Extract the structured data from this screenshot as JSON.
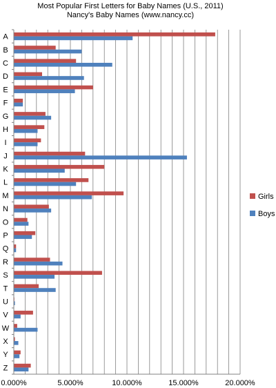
{
  "chart_data": {
    "type": "bar",
    "orientation": "horizontal",
    "title": "Most Popular First Letters for Baby Names (U.S., 2011)",
    "subtitle": "Nancy's Baby Names (www.nancy.cc)",
    "categories": [
      "A",
      "B",
      "C",
      "D",
      "E",
      "F",
      "G",
      "H",
      "I",
      "J",
      "K",
      "L",
      "M",
      "N",
      "O",
      "P",
      "Q",
      "R",
      "S",
      "T",
      "U",
      "V",
      "W",
      "X",
      "Y",
      "Z"
    ],
    "series": [
      {
        "name": "Girls",
        "color": "#c0504d",
        "values": [
          17.8,
          3.7,
          5.5,
          2.5,
          7.0,
          0.8,
          2.8,
          2.7,
          2.4,
          6.3,
          8.0,
          6.6,
          9.7,
          3.1,
          1.2,
          1.9,
          0.2,
          3.2,
          7.8,
          2.2,
          0.05,
          1.7,
          0.3,
          0.1,
          0.6,
          1.5
        ]
      },
      {
        "name": "Boys",
        "color": "#4f81bd",
        "values": [
          10.5,
          6.0,
          8.7,
          6.2,
          5.4,
          0.8,
          3.3,
          2.1,
          2.1,
          15.3,
          4.5,
          5.5,
          6.9,
          3.3,
          1.3,
          1.6,
          0.2,
          4.3,
          3.6,
          3.7,
          0.1,
          0.6,
          2.1,
          0.4,
          0.5,
          1.3
        ]
      }
    ],
    "xlim": [
      0,
      20
    ],
    "xticks": [
      "0.000%",
      "5.000%",
      "10.000%",
      "15.000%",
      "20.000%"
    ],
    "grid": "vertical gridlines at 1% intervals",
    "legend": "right"
  }
}
